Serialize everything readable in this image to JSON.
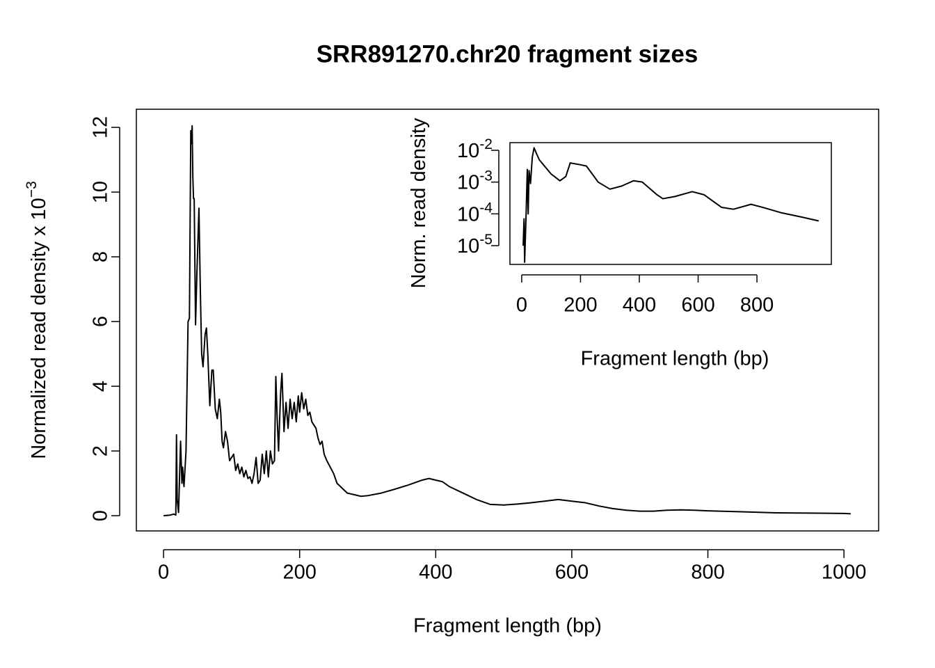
{
  "chart_data": [
    {
      "type": "line",
      "title": "SRR891270.chr20 fragment sizes",
      "x_label": "Fragment length (bp)",
      "y_label": "Normalized read density x 10",
      "y_label_exponent": "−3",
      "color": "#000000",
      "x": [
        0,
        10,
        15,
        18,
        19,
        20,
        22,
        25,
        27,
        28,
        30,
        33,
        36,
        38,
        40,
        41,
        42,
        43,
        44,
        45,
        47,
        49,
        52,
        54,
        56,
        58,
        61,
        63,
        65,
        68,
        71,
        73,
        76,
        79,
        82,
        84,
        86,
        88,
        91,
        94,
        97,
        100,
        103,
        106,
        109,
        112,
        115,
        118,
        121,
        124,
        127,
        130,
        133,
        136,
        139,
        142,
        145,
        148,
        151,
        154,
        157,
        160,
        163,
        165,
        167,
        169,
        172,
        174,
        177,
        180,
        183,
        186,
        189,
        192,
        195,
        198,
        200,
        203,
        206,
        209,
        212,
        215,
        218,
        221,
        224,
        227,
        230,
        233,
        236,
        240,
        245,
        250,
        255,
        260,
        270,
        280,
        290,
        300,
        320,
        340,
        360,
        380,
        390,
        400,
        410,
        420,
        440,
        460,
        480,
        500,
        520,
        540,
        560,
        580,
        600,
        620,
        640,
        660,
        680,
        700,
        720,
        740,
        760,
        780,
        800,
        850,
        900,
        950,
        1000,
        1010
      ],
      "values": [
        0,
        0.02,
        0.05,
        0.02,
        2.5,
        0.5,
        0.1,
        2.3,
        1.0,
        1.5,
        0.9,
        2.0,
        6.0,
        6.1,
        11.9,
        11.5,
        12.05,
        10.5,
        9.8,
        9.8,
        5.9,
        7.5,
        9.5,
        7.0,
        5.0,
        4.6,
        5.6,
        5.8,
        5.0,
        3.4,
        4.5,
        4.5,
        3.3,
        3.0,
        3.6,
        3.2,
        2.3,
        2.1,
        2.6,
        2.3,
        1.7,
        1.8,
        1.9,
        1.4,
        1.6,
        1.3,
        1.5,
        1.2,
        1.4,
        1.15,
        1.2,
        1.0,
        1.3,
        1.8,
        1.0,
        1.1,
        1.9,
        1.3,
        2.0,
        1.2,
        2.0,
        1.6,
        1.7,
        4.3,
        3.0,
        2.0,
        3.8,
        4.4,
        2.6,
        3.5,
        2.7,
        3.6,
        3.0,
        3.5,
        2.9,
        3.7,
        3.2,
        3.8,
        3.3,
        3.6,
        3.1,
        3.2,
        2.9,
        2.8,
        2.7,
        2.4,
        2.2,
        2.3,
        1.9,
        1.7,
        1.5,
        1.3,
        1.0,
        0.9,
        0.7,
        0.65,
        0.6,
        0.62,
        0.7,
        0.82,
        0.95,
        1.1,
        1.15,
        1.1,
        1.05,
        0.9,
        0.7,
        0.5,
        0.35,
        0.33,
        0.36,
        0.4,
        0.45,
        0.5,
        0.45,
        0.4,
        0.3,
        0.22,
        0.17,
        0.14,
        0.14,
        0.17,
        0.18,
        0.17,
        0.15,
        0.12,
        0.09,
        0.08,
        0.07,
        0.06
      ],
      "xlim": [
        -40,
        1051
      ],
      "ylim": [
        -0.47,
        12.56
      ],
      "xticks": [
        0,
        200,
        400,
        600,
        800,
        1000
      ],
      "yticks": [
        0,
        2,
        4,
        6,
        8,
        10,
        12
      ]
    },
    {
      "type": "line",
      "x_label": "Fragment length (bp)",
      "y_label": "Norm. read density",
      "color": "#000000",
      "log_y": true,
      "x": [
        5,
        8,
        10,
        15,
        19,
        22,
        25,
        30,
        36,
        42,
        50,
        60,
        80,
        100,
        130,
        150,
        165,
        200,
        220,
        260,
        300,
        340,
        380,
        410,
        460,
        480,
        520,
        580,
        620,
        680,
        720,
        780,
        820,
        880,
        950,
        1010
      ],
      "values": [
        1e-05,
        7e-05,
        3e-06,
        0.0001,
        0.0025,
        0.0001,
        0.0023,
        0.0009,
        0.006,
        0.012,
        0.008,
        0.005,
        0.003,
        0.0018,
        0.0011,
        0.0015,
        0.004,
        0.0035,
        0.0032,
        0.001,
        0.0006,
        0.00075,
        0.0011,
        0.001,
        0.0004,
        0.0003,
        0.00035,
        0.0005,
        0.0004,
        0.00016,
        0.00014,
        0.0002,
        0.00016,
        0.00011,
        8e-05,
        6e-05
      ],
      "xlim": [
        -40,
        1053
      ],
      "ylim": [
        2.57e-06,
        0.0174
      ],
      "xticks": [
        0,
        200,
        400,
        600,
        800
      ],
      "yticks": [
        {
          "value": 0.01,
          "label": "10",
          "exponent": "-2"
        },
        {
          "value": 0.001,
          "label": "10",
          "exponent": "-3"
        },
        {
          "value": 0.0001,
          "label": "10",
          "exponent": "-4"
        },
        {
          "value": 1e-05,
          "label": "10",
          "exponent": "-5"
        }
      ]
    }
  ]
}
